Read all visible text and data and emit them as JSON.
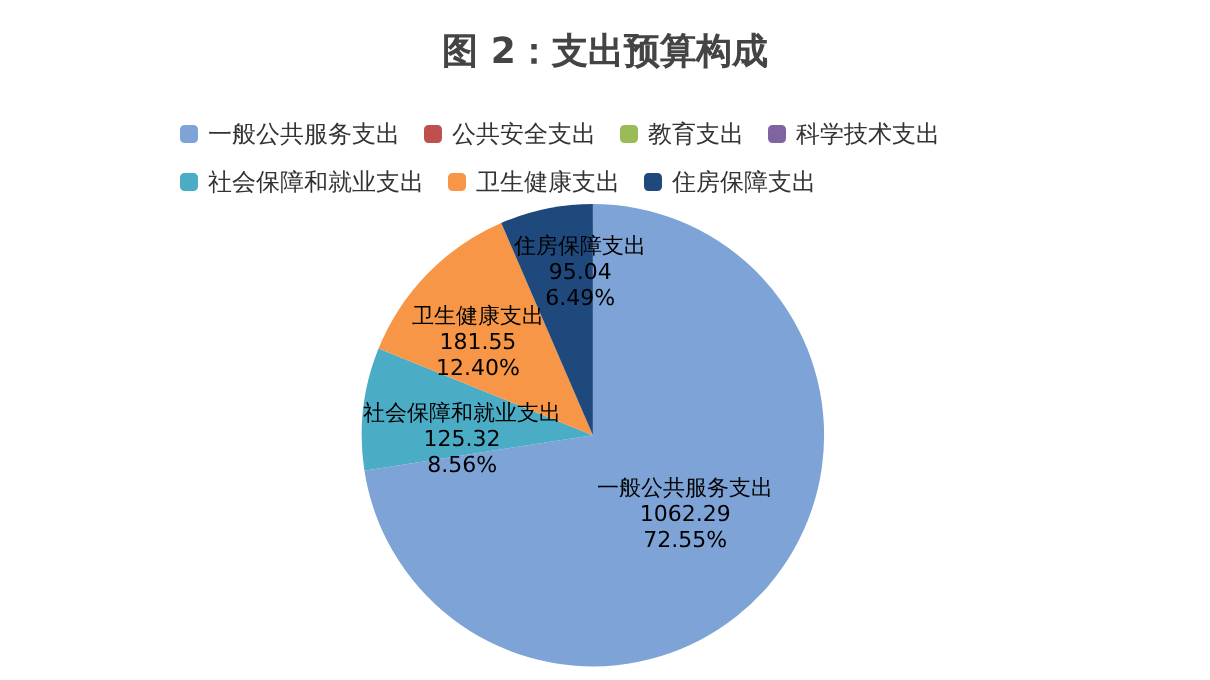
{
  "chart_data": {
    "type": "pie",
    "title": "图 2：支出预算构成",
    "categories": [
      "一般公共服务支出",
      "公共安全支出",
      "教育支出",
      "科学技术支出",
      "社会保障和就业支出",
      "卫生健康支出",
      "住房保障支出"
    ],
    "values": [
      1062.29,
      0,
      0,
      0,
      125.32,
      181.55,
      95.04
    ],
    "value_labels": [
      "1062.29\n72.55%",
      null,
      null,
      null,
      "125.32\n8.56%",
      "181.55\n12.40%",
      "95.04\n6.49%"
    ],
    "colors": [
      "#7ea3d6",
      "#c0504d",
      "#9bbb59",
      "#8064a2",
      "#4bacc6",
      "#f79646",
      "#1f497d"
    ],
    "legend": "top"
  }
}
